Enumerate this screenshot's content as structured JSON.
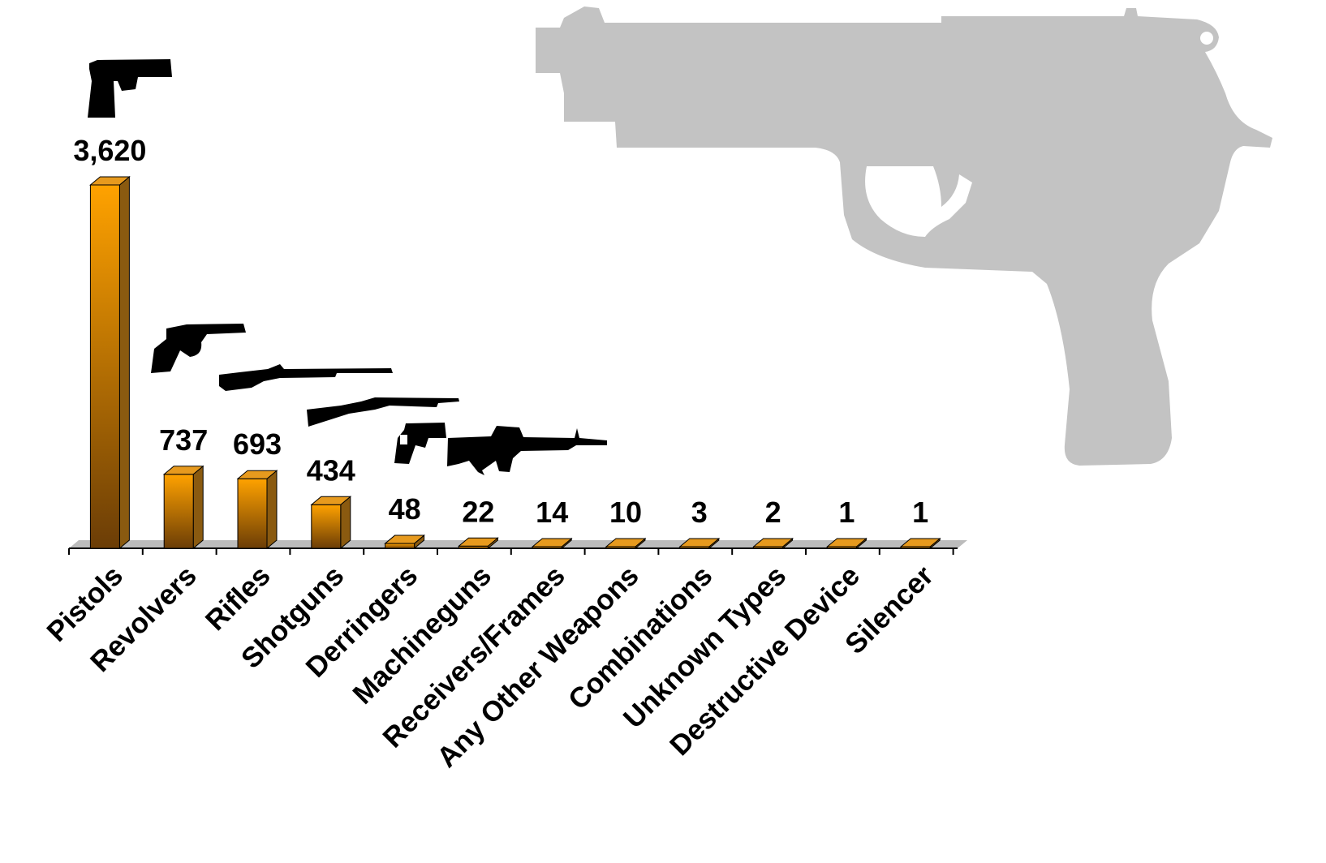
{
  "colors": {
    "bar_front_top": "#ffa200",
    "bar_front_bottom": "#6b3d06",
    "bar_side": "#8a5a10",
    "bar_top": "#e79a1e",
    "floor": "#bcbcbc",
    "watermark": "#c3c3c3",
    "icon": "#000000"
  },
  "icons": {
    "watermark": "pistol-silhouette-icon",
    "pistols": "pistol-icon",
    "revolvers": "revolver-icon",
    "rifles": "rifle-icon",
    "shotguns": "shotgun-icon",
    "derringers": "derringer-icon",
    "machineguns": "assault-rifle-icon"
  },
  "chart_data": {
    "type": "bar",
    "style": "3d-column",
    "categories": [
      "Pistols",
      "Revolvers",
      "Rifles",
      "Shotguns",
      "Derringers",
      "Machineguns",
      "Receivers/Frames",
      "Any Other Weapons",
      "Combinations",
      "Unknown Types",
      "Destructive Device",
      "Silencer"
    ],
    "values": [
      3620,
      737,
      693,
      434,
      48,
      22,
      14,
      10,
      3,
      2,
      1,
      1
    ],
    "value_labels": [
      "3,620",
      "737",
      "693",
      "434",
      "48",
      "22",
      "14",
      "10",
      "3",
      "2",
      "1",
      "1"
    ],
    "title": "",
    "xlabel": "",
    "ylabel": "",
    "ylim": [
      0,
      3620
    ],
    "grid": false,
    "legend": "none",
    "yaxis_visible": false
  }
}
